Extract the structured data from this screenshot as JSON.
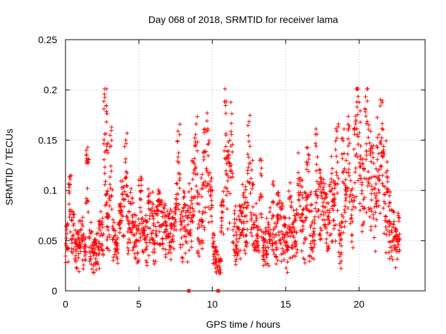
{
  "chart_data": {
    "type": "scatter",
    "title": "Day 068 of 2018, SRMTID for receiver lama",
    "xlabel": "GPS time / hours",
    "ylabel": "SRMTID / TECUs",
    "xlim": [
      0,
      24.5
    ],
    "ylim": [
      0,
      0.25
    ],
    "xticks": [
      0,
      5,
      10,
      15,
      20
    ],
    "yticks": [
      0,
      0.05,
      0.1,
      0.15,
      0.2,
      0.25
    ],
    "xtick_labels": [
      "0",
      "5",
      "10",
      "15",
      "20"
    ],
    "ytick_labels": [
      "0",
      "0.05",
      "0.1",
      "0.15",
      "0.2",
      "0.25"
    ],
    "grid": true,
    "marker": "+",
    "series_color": "#ff0000",
    "series": [
      {
        "name": "SRMTID",
        "x": [
          0.1,
          0.3,
          0.5,
          0.7,
          0.9,
          1.1,
          1.3,
          1.5,
          1.7,
          1.9,
          2.1,
          2.3,
          2.5,
          2.7,
          2.8,
          2.9,
          3.1,
          3.3,
          3.5,
          3.7,
          3.9,
          4.1,
          4.3,
          4.5,
          4.7,
          4.9,
          5.1,
          5.3,
          5.5,
          5.7,
          5.9,
          6.1,
          6.3,
          6.5,
          6.7,
          6.9,
          7.1,
          7.3,
          7.5,
          7.7,
          7.9,
          8.1,
          8.3,
          8.5,
          8.7,
          8.9,
          9.1,
          9.3,
          9.5,
          9.7,
          9.9,
          10.1,
          10.3,
          10.5,
          10.7,
          10.9,
          11.1,
          11.3,
          11.5,
          11.7,
          11.9,
          12.1,
          12.3,
          12.5,
          12.7,
          12.9,
          13.1,
          13.3,
          13.5,
          13.7,
          13.9,
          14.1,
          14.3,
          14.5,
          14.7,
          14.9,
          15.1,
          15.3,
          15.5,
          15.7,
          15.9,
          16.1,
          16.3,
          16.5,
          16.7,
          16.9,
          17.1,
          17.3,
          17.5,
          17.7,
          17.9,
          18.1,
          18.3,
          18.5,
          18.7,
          18.9,
          19.1,
          19.3,
          19.5,
          19.7,
          19.9,
          20.1,
          20.3,
          20.5,
          20.7,
          20.9,
          21.1,
          21.3,
          21.5,
          21.7,
          21.9,
          22.1,
          22.3,
          22.5,
          22.7
        ],
        "y": [
          0.065,
          0.12,
          0.07,
          0.055,
          0.06,
          0.065,
          0.05,
          0.14,
          0.06,
          0.045,
          0.05,
          0.065,
          0.07,
          0.19,
          0.17,
          0.08,
          0.15,
          0.06,
          0.05,
          0.09,
          0.1,
          0.14,
          0.08,
          0.09,
          0.07,
          0.06,
          0.11,
          0.07,
          0.065,
          0.09,
          0.08,
          0.07,
          0.1,
          0.09,
          0.08,
          0.07,
          0.075,
          0.08,
          0.09,
          0.15,
          0.07,
          0.09,
          0.08,
          0.1,
          0.12,
          0.16,
          0.08,
          0.1,
          0.15,
          0.17,
          0.11,
          0.05,
          0.04,
          0.03,
          0.09,
          0.19,
          0.14,
          0.16,
          0.07,
          0.06,
          0.08,
          0.09,
          0.1,
          0.16,
          0.11,
          0.07,
          0.06,
          0.12,
          0.05,
          0.06,
          0.07,
          0.1,
          0.06,
          0.09,
          0.08,
          0.07,
          0.06,
          0.09,
          0.07,
          0.08,
          0.12,
          0.1,
          0.09,
          0.13,
          0.08,
          0.07,
          0.15,
          0.11,
          0.1,
          0.09,
          0.08,
          0.12,
          0.1,
          0.15,
          0.06,
          0.14,
          0.12,
          0.16,
          0.09,
          0.17,
          0.2,
          0.16,
          0.12,
          0.19,
          0.15,
          0.13,
          0.1,
          0.15,
          0.18,
          0.14,
          0.12,
          0.09,
          0.07,
          0.06,
          0.08
        ],
        "spread": [
          0.018,
          0.025,
          0.02,
          0.018,
          0.018,
          0.02,
          0.02,
          0.03,
          0.018,
          0.015,
          0.018,
          0.02,
          0.02,
          0.04,
          0.04,
          0.025,
          0.04,
          0.02,
          0.018,
          0.025,
          0.028,
          0.035,
          0.025,
          0.028,
          0.022,
          0.02,
          0.03,
          0.022,
          0.02,
          0.028,
          0.025,
          0.022,
          0.028,
          0.028,
          0.025,
          0.022,
          0.022,
          0.025,
          0.028,
          0.04,
          0.022,
          0.03,
          0.025,
          0.03,
          0.035,
          0.045,
          0.028,
          0.035,
          0.045,
          0.05,
          0.035,
          0.02,
          0.015,
          0.012,
          0.035,
          0.05,
          0.04,
          0.045,
          0.025,
          0.02,
          0.028,
          0.03,
          0.03,
          0.04,
          0.035,
          0.025,
          0.02,
          0.035,
          0.018,
          0.02,
          0.022,
          0.03,
          0.02,
          0.028,
          0.025,
          0.022,
          0.02,
          0.028,
          0.022,
          0.025,
          0.035,
          0.03,
          0.03,
          0.035,
          0.025,
          0.025,
          0.04,
          0.035,
          0.03,
          0.03,
          0.028,
          0.035,
          0.03,
          0.045,
          0.025,
          0.04,
          0.035,
          0.045,
          0.03,
          0.05,
          0.05,
          0.045,
          0.035,
          0.05,
          0.045,
          0.04,
          0.03,
          0.045,
          0.05,
          0.045,
          0.04,
          0.03,
          0.025,
          0.02,
          0.025
        ]
      }
    ],
    "axis_markers_x": [
      8.4,
      10.4
    ]
  }
}
